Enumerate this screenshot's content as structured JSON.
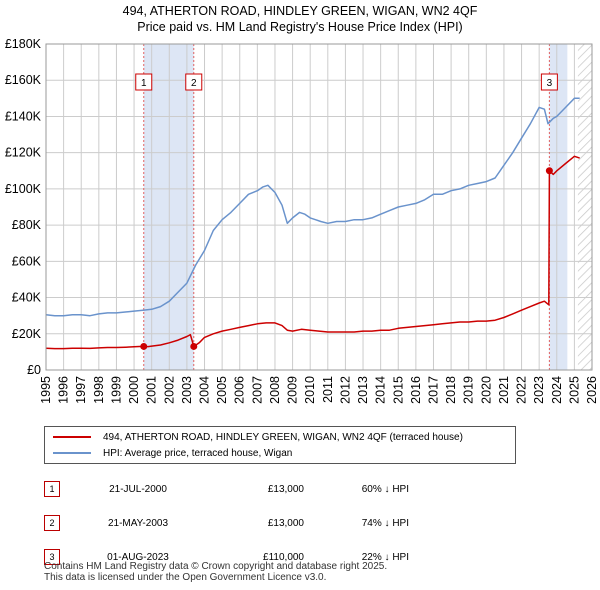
{
  "title_line1": "494, ATHERTON ROAD, HINDLEY GREEN, WIGAN, WN2 4QF",
  "title_line2": "Price paid vs. HM Land Registry's House Price Index (HPI)",
  "legend": {
    "property_label": "494, ATHERTON ROAD, HINDLEY GREEN, WIGAN, WN2 4QF (terraced house)",
    "hpi_label": "HPI: Average price, terraced house, Wigan"
  },
  "sales": [
    {
      "num": "1",
      "date": "21-JUL-2000",
      "price": "£13,000",
      "hpi_diff": "60% ↓ HPI"
    },
    {
      "num": "2",
      "date": "21-MAY-2003",
      "price": "£13,000",
      "hpi_diff": "74% ↓ HPI"
    },
    {
      "num": "3",
      "date": "01-AUG-2023",
      "price": "£110,000",
      "hpi_diff": "22% ↓ HPI"
    }
  ],
  "footer_line1": "Contains HM Land Registry data © Crown copyright and database right 2025.",
  "footer_line2": "This data is licensed under the Open Government Licence v3.0.",
  "colors": {
    "property": "#cc0000",
    "hpi": "#6a93cc",
    "shade": "#dde6f5",
    "grid": "#cccccc"
  },
  "chart_data": {
    "type": "line",
    "title": "494, ATHERTON ROAD, HINDLEY GREEN, WIGAN, WN2 4QF",
    "subtitle": "Price paid vs. HM Land Registry's House Price Index (HPI)",
    "xlabel": "",
    "ylabel": "",
    "xlim": [
      1995,
      2026
    ],
    "ylim": [
      0,
      180000
    ],
    "x_ticks": [
      1995,
      1996,
      1997,
      1998,
      1999,
      2000,
      2001,
      2002,
      2003,
      2004,
      2005,
      2006,
      2007,
      2008,
      2009,
      2010,
      2011,
      2012,
      2013,
      2014,
      2015,
      2016,
      2017,
      2018,
      2019,
      2020,
      2021,
      2022,
      2023,
      2024,
      2025,
      2026
    ],
    "y_ticks": [
      0,
      20000,
      40000,
      60000,
      80000,
      100000,
      120000,
      140000,
      160000,
      180000
    ],
    "y_tick_labels": [
      "£0",
      "£20K",
      "£40K",
      "£60K",
      "£80K",
      "£100K",
      "£120K",
      "£140K",
      "£160K",
      "£180K"
    ],
    "grid": true,
    "shaded_ranges": [
      [
        2000.55,
        2003.39
      ],
      [
        2023.58,
        2024.6
      ]
    ],
    "future_hatch_from": 2025.2,
    "series": [
      {
        "name": "HPI: Average price, terraced house, Wigan",
        "x": [
          1995,
          1995.5,
          1996,
          1996.5,
          1997,
          1997.5,
          1998,
          1998.5,
          1999,
          1999.5,
          2000,
          2000.5,
          2001,
          2001.5,
          2002,
          2002.5,
          2003,
          2003.5,
          2004,
          2004.5,
          2005,
          2005.5,
          2006,
          2006.5,
          2007,
          2007.3,
          2007.6,
          2008,
          2008.4,
          2008.7,
          2009,
          2009.4,
          2009.7,
          2010,
          2010.3,
          2010.6,
          2011,
          2011.5,
          2012,
          2012.5,
          2013,
          2013.5,
          2014,
          2014.5,
          2015,
          2015.5,
          2016,
          2016.5,
          2017,
          2017.5,
          2018,
          2018.5,
          2019,
          2019.5,
          2020,
          2020.5,
          2021,
          2021.5,
          2022,
          2022.5,
          2023,
          2023.3,
          2023.5,
          2023.8,
          2024,
          2024.5,
          2025,
          2025.3
        ],
        "values": [
          30500,
          30000,
          30000,
          30500,
          30500,
          30000,
          31000,
          31500,
          31500,
          32000,
          32500,
          33000,
          33500,
          35000,
          38000,
          43000,
          48000,
          58000,
          66000,
          77000,
          83000,
          87000,
          92000,
          97000,
          99000,
          101000,
          102000,
          98000,
          91000,
          81000,
          84000,
          87000,
          86000,
          84000,
          83000,
          82000,
          81000,
          82000,
          82000,
          83000,
          83000,
          84000,
          86000,
          88000,
          90000,
          91000,
          92000,
          94000,
          97000,
          97000,
          99000,
          100000,
          102000,
          103000,
          104000,
          106000,
          113000,
          120000,
          128000,
          136000,
          145000,
          144000,
          136000,
          139000,
          140000,
          145000,
          150000,
          150000
        ]
      },
      {
        "name": "494, ATHERTON ROAD, HINDLEY GREEN, WIGAN, WN2 4QF (terraced house)",
        "x": [
          1995,
          1995.5,
          1996,
          1996.5,
          1997,
          1997.5,
          1998,
          1998.5,
          1999,
          1999.5,
          2000,
          2000.3,
          2000.55,
          2000.8,
          2001,
          2001.5,
          2002,
          2002.5,
          2003,
          2003.2,
          2003.39,
          2003.7,
          2004,
          2004.5,
          2005,
          2005.5,
          2006,
          2006.5,
          2007,
          2007.5,
          2008,
          2008.4,
          2008.7,
          2009,
          2009.5,
          2010,
          2010.5,
          2011,
          2011.5,
          2012,
          2012.5,
          2013,
          2013.5,
          2014,
          2014.5,
          2015,
          2015.5,
          2016,
          2016.5,
          2017,
          2017.5,
          2018,
          2018.5,
          2019,
          2019.5,
          2020,
          2020.5,
          2021,
          2021.5,
          2022,
          2022.5,
          2023,
          2023.3,
          2023.55,
          2023.58,
          2023.8,
          2024,
          2024.5,
          2025,
          2025.3
        ],
        "values": [
          12000,
          11800,
          11800,
          12000,
          12000,
          11900,
          12200,
          12400,
          12400,
          12600,
          12800,
          13000,
          13000,
          12900,
          13200,
          13800,
          15000,
          16500,
          18500,
          19500,
          13000,
          15000,
          18000,
          20000,
          21500,
          22500,
          23500,
          24500,
          25500,
          26000,
          26000,
          24500,
          22000,
          21500,
          22500,
          22000,
          21500,
          21000,
          21000,
          21000,
          21000,
          21500,
          21500,
          22000,
          22000,
          23000,
          23500,
          24000,
          24500,
          25000,
          25500,
          26000,
          26500,
          26500,
          27000,
          27000,
          27500,
          29000,
          31000,
          33000,
          35000,
          37000,
          38000,
          36000,
          110000,
          108000,
          110000,
          114000,
          118000,
          117000
        ]
      }
    ],
    "sale_markers": [
      {
        "label": "1",
        "x": 2000.55,
        "value": 13000
      },
      {
        "label": "2",
        "x": 2003.39,
        "value": 13000
      },
      {
        "label": "3",
        "x": 2023.58,
        "value": 110000
      }
    ]
  }
}
